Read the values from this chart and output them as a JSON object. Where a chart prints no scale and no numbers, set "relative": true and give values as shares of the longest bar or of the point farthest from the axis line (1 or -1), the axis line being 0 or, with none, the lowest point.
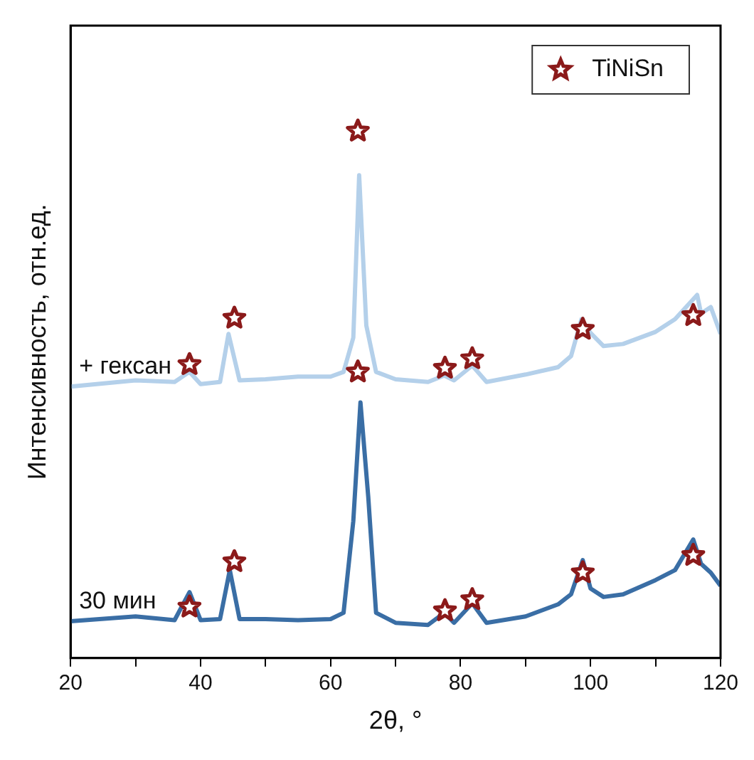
{
  "chart_data": {
    "type": "line",
    "xlabel": "2θ, °",
    "ylabel": "Интенсивность, отн.ед.",
    "relative": true,
    "xlim": [
      20,
      120
    ],
    "xticks": [
      20,
      {
        "value": 30,
        "label": null
      },
      40,
      {
        "value": 50,
        "label": null
      },
      60,
      {
        "value": 70,
        "label": null
      },
      80,
      {
        "value": 90,
        "label": null
      },
      100,
      {
        "value": 110,
        "label": null
      },
      120
    ],
    "legend": "top right",
    "marker": "none",
    "line_style": "solid",
    "series": [
      {
        "name": "+ гексан",
        "color": "#b4d0ea",
        "x": [
          20,
          30,
          36,
          38.3,
          40,
          43,
          44.3,
          46,
          50,
          55,
          60,
          62,
          63.5,
          64.4,
          65.5,
          67,
          70,
          75,
          77.5,
          79,
          81.8,
          84,
          90,
          95,
          97,
          98.6,
          100,
          102,
          105,
          110,
          113,
          116.4,
          117,
          118.5,
          120
        ],
        "values": [
          0.515,
          0.527,
          0.524,
          0.543,
          0.52,
          0.524,
          0.615,
          0.527,
          0.529,
          0.534,
          0.534,
          0.543,
          0.608,
          0.916,
          0.631,
          0.543,
          0.529,
          0.524,
          0.536,
          0.527,
          0.555,
          0.524,
          0.538,
          0.552,
          0.573,
          0.643,
          0.617,
          0.592,
          0.596,
          0.619,
          0.643,
          0.689,
          0.654,
          0.666,
          0.615
        ]
      },
      {
        "name": "30 мин",
        "color": "#3a6ea5",
        "x": [
          20,
          30,
          36,
          38.3,
          40,
          43,
          44.5,
          46,
          50,
          55,
          60,
          62,
          63.5,
          64.6,
          65.8,
          67,
          70,
          75,
          77.5,
          79,
          81.8,
          84,
          90,
          95,
          97,
          98.8,
          100,
          102,
          105,
          110,
          113,
          115.8,
          117,
          118.5,
          120
        ],
        "values": [
          0.07,
          0.079,
          0.072,
          0.125,
          0.072,
          0.074,
          0.167,
          0.074,
          0.074,
          0.072,
          0.074,
          0.086,
          0.26,
          0.485,
          0.306,
          0.086,
          0.067,
          0.063,
          0.086,
          0.067,
          0.104,
          0.067,
          0.079,
          0.102,
          0.121,
          0.186,
          0.132,
          0.116,
          0.121,
          0.148,
          0.167,
          0.225,
          0.179,
          0.162,
          0.137
        ]
      },
      {
        "name": "TiNiSn",
        "type": "scatter",
        "marker": "star",
        "color": "#8b1a1a",
        "x": [
          38.3,
          45.2,
          64.2,
          64.2,
          77.6,
          81.8,
          98.8,
          115.8,
          38.3,
          45.2,
          77.6,
          81.8,
          98.8,
          115.8
        ],
        "values": [
          0.557,
          0.645,
          1.0,
          0.543,
          0.55,
          0.568,
          0.624,
          0.65,
          0.097,
          0.183,
          0.09,
          0.111,
          0.162,
          0.195
        ]
      }
    ]
  }
}
